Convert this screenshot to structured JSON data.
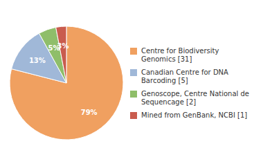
{
  "chart_data": {
    "type": "pie",
    "categories": [
      "Centre for Biodiversity\nGenomics [31]",
      "Canadian Centre for DNA\nBarcoding [5]",
      "Genoscope, Centre National de\nSequencage [2]",
      "Mined from GenBank, NCBI [1]"
    ],
    "values": [
      79,
      13,
      5,
      3
    ],
    "value_labels": [
      "79%",
      "13%",
      "5%",
      "3%"
    ],
    "colors": [
      "#f0a060",
      "#a0b8d8",
      "#8fbe6a",
      "#c95c4e"
    ],
    "data_labels": true,
    "legend": "right"
  }
}
